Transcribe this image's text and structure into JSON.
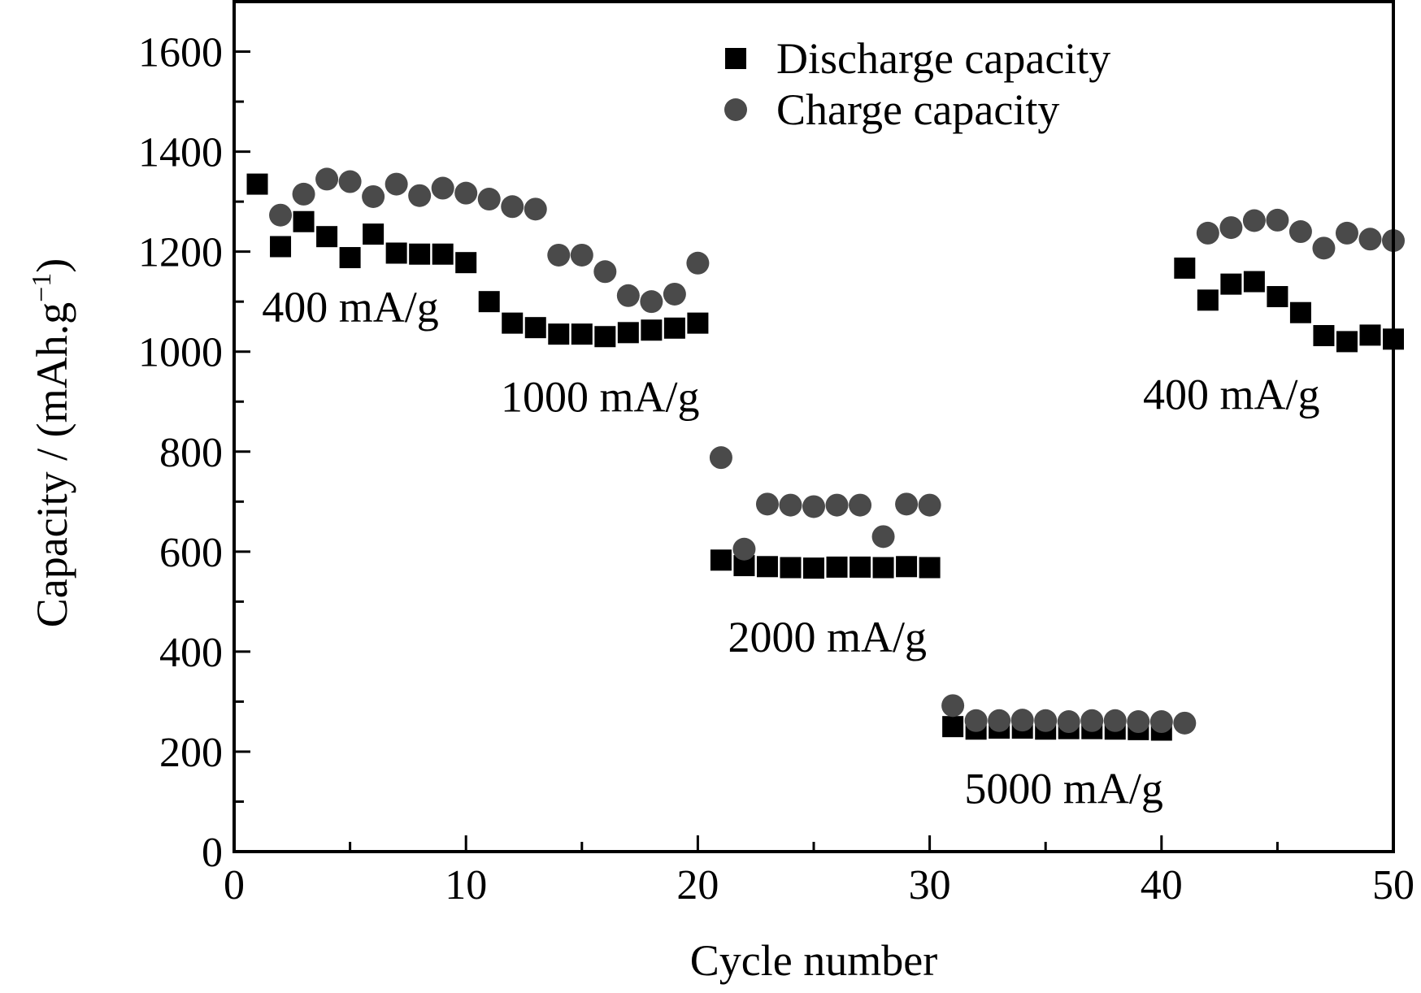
{
  "chart_data": {
    "type": "scatter",
    "title": "",
    "xlabel": "Cycle number",
    "ylabel": "Capacity / (mAh.g",
    "ylabel_sup": "−1",
    "ylabel_close": ")",
    "xlim": [
      0,
      50
    ],
    "ylim": [
      0,
      1700
    ],
    "x_ticks": [
      0,
      10,
      20,
      30,
      40,
      50
    ],
    "y_ticks": [
      0,
      200,
      400,
      600,
      800,
      1000,
      1200,
      1400,
      1600
    ],
    "grid": false,
    "legend_position": "top-center",
    "series": [
      {
        "name": "Discharge capacity",
        "marker": "square",
        "color": "#000000",
        "x": [
          1,
          2,
          3,
          4,
          5,
          6,
          7,
          8,
          9,
          10,
          11,
          12,
          13,
          14,
          15,
          16,
          17,
          18,
          19,
          20,
          21,
          22,
          23,
          24,
          25,
          26,
          27,
          28,
          29,
          30,
          31,
          32,
          33,
          34,
          35,
          36,
          37,
          38,
          39,
          40,
          41,
          42,
          43,
          44,
          45,
          46,
          47,
          48,
          49,
          50
        ],
        "y": [
          1335,
          1210,
          1260,
          1230,
          1188,
          1235,
          1197,
          1195,
          1195,
          1178,
          1100,
          1057,
          1048,
          1035,
          1035,
          1030,
          1038,
          1043,
          1047,
          1057,
          583,
          572,
          570,
          568,
          567,
          569,
          569,
          568,
          570,
          568,
          250,
          245,
          247,
          247,
          245,
          246,
          246,
          245,
          244,
          243,
          1167,
          1103,
          1135,
          1140,
          1110,
          1078,
          1032,
          1020,
          1033,
          1025
        ]
      },
      {
        "name": "Charge capacity",
        "marker": "circle",
        "color": "#4a4a4a",
        "x": [
          2,
          3,
          4,
          5,
          6,
          7,
          8,
          9,
          10,
          11,
          12,
          13,
          14,
          15,
          16,
          17,
          18,
          19,
          20,
          21,
          22,
          23,
          24,
          25,
          26,
          27,
          28,
          29,
          30,
          31,
          32,
          33,
          34,
          35,
          36,
          37,
          38,
          39,
          40,
          41,
          42,
          43,
          44,
          45,
          46,
          47,
          48,
          49,
          50
        ],
        "y": [
          1273,
          1315,
          1345,
          1340,
          1310,
          1335,
          1312,
          1327,
          1317,
          1305,
          1290,
          1285,
          1193,
          1193,
          1160,
          1112,
          1100,
          1115,
          1177,
          788,
          605,
          695,
          693,
          690,
          693,
          693,
          630,
          695,
          693,
          292,
          262,
          262,
          263,
          262,
          260,
          262,
          262,
          260,
          260,
          257,
          1237,
          1248,
          1262,
          1263,
          1240,
          1207,
          1237,
          1225,
          1222
        ]
      }
    ],
    "annotations": [
      {
        "text": "400 mA/g",
        "x": 1.2,
        "y": 1060
      },
      {
        "text": "1000 mA/g",
        "x": 11.5,
        "y": 880
      },
      {
        "text": "2000 mA/g",
        "x": 21.3,
        "y": 400
      },
      {
        "text": "5000 mA/g",
        "x": 31.5,
        "y": 97
      },
      {
        "text": "400 mA/g",
        "x": 39.2,
        "y": 885
      }
    ]
  }
}
